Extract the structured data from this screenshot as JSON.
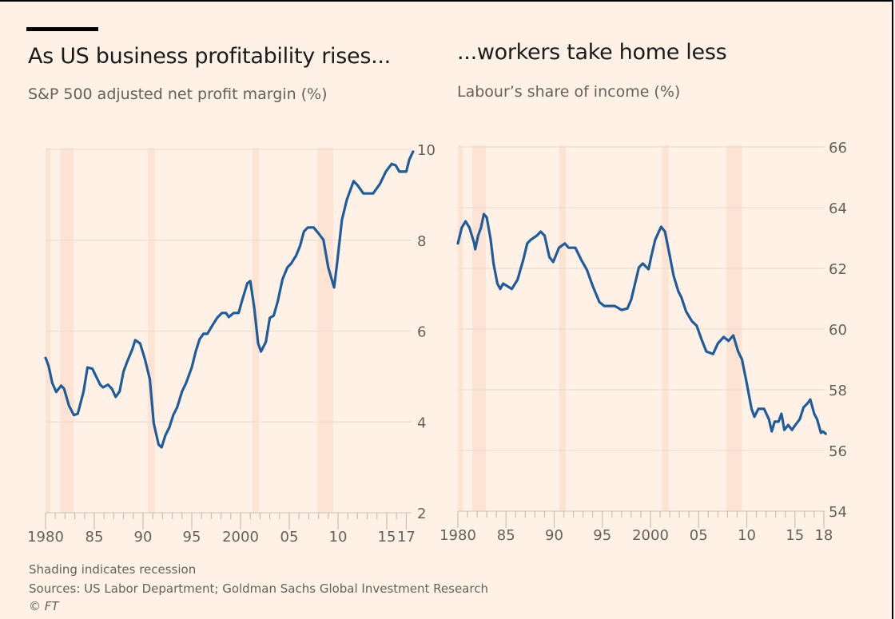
{
  "left": {
    "title": "As US business profitability rises...",
    "subtitle": "S&P 500 adjusted net profit margin (%)"
  },
  "right": {
    "title": "...workers take home less",
    "subtitle": "Labour’s share of income (%)"
  },
  "footer": {
    "note": "Shading indicates recession",
    "sources": "Sources: US Labor Department; Goldman Sachs Global Investment Research",
    "copyright": "© FT"
  },
  "colors": {
    "background": "#fff1e5",
    "line": "#1f5c99",
    "grid": "#e9ded3",
    "recession": "#fde0d0",
    "text_muted": "#66605c"
  },
  "chart_data": [
    {
      "type": "line",
      "title": "As US business profitability rises...",
      "subtitle": "S&P 500 adjusted net profit margin (%)",
      "xlabel": "",
      "ylabel": "S&P 500 adjusted net profit margin (%)",
      "xlim": [
        1980,
        2017.8
      ],
      "ylim": [
        2,
        10
      ],
      "yticks": [
        2,
        4,
        6,
        8,
        10
      ],
      "ytick_labels": [
        "2",
        "4",
        "6",
        "8",
        "10"
      ],
      "xtick_major": [
        1980,
        1985,
        1990,
        1995,
        2000,
        2005,
        2010,
        2015,
        2017
      ],
      "xtick_labels": [
        "1980",
        "85",
        "90",
        "95",
        "2000",
        "05",
        "10",
        "15",
        "17"
      ],
      "y_axis_position": "right",
      "grid": true,
      "recessions": [
        [
          1980.0,
          1980.5
        ],
        [
          1981.5,
          1982.9
        ],
        [
          1990.5,
          1991.2
        ],
        [
          2001.2,
          2001.9
        ],
        [
          2007.9,
          2009.5
        ]
      ],
      "series": [
        {
          "name": "S&P 500 adjusted net profit margin",
          "x": [
            1980.0,
            1980.3,
            1980.7,
            1981.1,
            1981.6,
            1981.9,
            1982.4,
            1982.9,
            1983.3,
            1983.9,
            1984.3,
            1984.8,
            1985.6,
            1985.9,
            1986.4,
            1986.8,
            1987.2,
            1987.6,
            1988.0,
            1988.4,
            1988.9,
            1989.2,
            1989.7,
            1990.2,
            1990.7,
            1991.1,
            1991.6,
            1991.9,
            1992.3,
            1992.7,
            1993.1,
            1993.5,
            1994.0,
            1994.4,
            1995.0,
            1995.4,
            1995.8,
            1996.2,
            1996.6,
            1997.1,
            1997.6,
            1998.1,
            1998.5,
            1998.8,
            1999.3,
            1999.8,
            2000.2,
            2000.7,
            2001.0,
            2001.4,
            2001.8,
            2002.1,
            2002.6,
            2003.0,
            2003.4,
            2003.8,
            2004.3,
            2004.8,
            2005.2,
            2005.7,
            2006.1,
            2006.5,
            2006.9,
            2007.5,
            2008.0,
            2008.5,
            2009.0,
            2009.6,
            2009.9,
            2010.4,
            2010.9,
            2011.6,
            2012.0,
            2012.6,
            2013.6,
            2014.3,
            2014.9,
            2015.5,
            2015.9,
            2016.3,
            2017.0,
            2017.3,
            2017.7
          ],
          "y": [
            5.41,
            5.24,
            4.85,
            4.66,
            4.8,
            4.73,
            4.36,
            4.15,
            4.18,
            4.67,
            5.2,
            5.17,
            4.82,
            4.76,
            4.82,
            4.73,
            4.55,
            4.67,
            5.11,
            5.34,
            5.6,
            5.8,
            5.73,
            5.38,
            4.94,
            3.97,
            3.5,
            3.44,
            3.71,
            3.88,
            4.15,
            4.32,
            4.67,
            4.85,
            5.2,
            5.55,
            5.82,
            5.94,
            5.94,
            6.12,
            6.29,
            6.4,
            6.4,
            6.31,
            6.4,
            6.4,
            6.7,
            7.05,
            7.1,
            6.52,
            5.73,
            5.55,
            5.76,
            6.29,
            6.34,
            6.64,
            7.14,
            7.4,
            7.49,
            7.66,
            7.87,
            8.19,
            8.28,
            8.28,
            8.15,
            8.01,
            7.4,
            6.96,
            7.49,
            8.45,
            8.89,
            9.3,
            9.21,
            9.03,
            9.03,
            9.24,
            9.51,
            9.68,
            9.65,
            9.51,
            9.51,
            9.77,
            9.95
          ]
        }
      ]
    },
    {
      "type": "line",
      "title": "...workers take home less",
      "subtitle": "Labour’s share of income (%)",
      "xlabel": "",
      "ylabel": "Labour’s share of income (%)",
      "xlim": [
        1980,
        2018.3
      ],
      "ylim": [
        54,
        66
      ],
      "yticks": [
        54,
        56,
        58,
        60,
        62,
        64,
        66
      ],
      "ytick_labels": [
        "54",
        "56",
        "58",
        "60",
        "62",
        "64",
        "66"
      ],
      "xtick_major": [
        1980,
        1985,
        1990,
        1995,
        2000,
        2005,
        2010,
        2015,
        2018
      ],
      "xtick_labels": [
        "1980",
        "85",
        "90",
        "95",
        "2000",
        "05",
        "10",
        "15",
        "18"
      ],
      "y_axis_position": "right",
      "grid": true,
      "recessions": [
        [
          1980.0,
          1980.5
        ],
        [
          1981.5,
          1982.9
        ],
        [
          1990.5,
          1991.2
        ],
        [
          2001.2,
          2001.9
        ],
        [
          2007.9,
          2009.5
        ]
      ],
      "series": [
        {
          "name": "Labour's share of income",
          "x": [
            1980.0,
            1980.4,
            1980.8,
            1981.2,
            1981.7,
            1981.8,
            1982.1,
            1982.4,
            1982.7,
            1983.0,
            1983.4,
            1983.7,
            1984.1,
            1984.4,
            1984.7,
            1985.1,
            1985.6,
            1986.2,
            1986.8,
            1987.2,
            1987.6,
            1988.2,
            1988.6,
            1989.0,
            1989.5,
            1989.9,
            1990.5,
            1991.1,
            1991.5,
            1992.2,
            1992.8,
            1993.4,
            1994.0,
            1994.7,
            1995.2,
            1996.3,
            1997.0,
            1997.6,
            1998.0,
            1998.4,
            1998.8,
            1999.2,
            1999.8,
            2000.1,
            2000.5,
            2001.1,
            2001.5,
            2002.0,
            2002.4,
            2002.9,
            2003.2,
            2003.7,
            2004.3,
            2004.8,
            2005.3,
            2005.8,
            2006.5,
            2007.0,
            2007.6,
            2008.1,
            2008.6,
            2009.1,
            2009.5,
            2010.0,
            2010.5,
            2010.8,
            2011.2,
            2011.8,
            2012.3,
            2012.6,
            2012.9,
            2013.3,
            2013.6,
            2013.9,
            2014.3,
            2014.7,
            2015.0,
            2015.5,
            2015.9,
            2016.3,
            2016.6,
            2017.0,
            2017.3,
            2017.7,
            2017.9,
            2018.2
          ],
          "y": [
            62.82,
            63.34,
            63.55,
            63.34,
            62.82,
            62.63,
            63.08,
            63.34,
            63.79,
            63.68,
            62.95,
            62.16,
            61.5,
            61.32,
            61.5,
            61.42,
            61.32,
            61.63,
            62.29,
            62.82,
            62.95,
            63.08,
            63.21,
            63.08,
            62.37,
            62.21,
            62.68,
            62.82,
            62.68,
            62.68,
            62.29,
            61.95,
            61.42,
            60.89,
            60.76,
            60.76,
            60.63,
            60.68,
            60.97,
            61.5,
            62.03,
            62.16,
            61.97,
            62.42,
            62.95,
            63.37,
            63.21,
            62.42,
            61.76,
            61.24,
            61.05,
            60.58,
            60.26,
            60.11,
            59.66,
            59.26,
            59.18,
            59.53,
            59.74,
            59.61,
            59.79,
            59.26,
            59.0,
            58.21,
            57.37,
            57.11,
            57.37,
            57.37,
            57.03,
            56.63,
            56.95,
            56.95,
            57.21,
            56.68,
            56.84,
            56.68,
            56.82,
            57.03,
            57.42,
            57.55,
            57.68,
            57.21,
            57.03,
            56.58,
            56.63,
            56.55
          ]
        }
      ]
    }
  ]
}
